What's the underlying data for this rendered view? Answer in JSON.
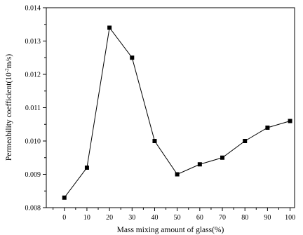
{
  "chart_data": {
    "type": "line",
    "title": "",
    "xlabel": "Mass mixing amount of glass(%)",
    "ylabel": {
      "prefix": "Permeability coefficient(10",
      "exponent": "-2",
      "suffix": "m/s)"
    },
    "x_ticks": [
      "0",
      "10",
      "20",
      "30",
      "40",
      "50",
      "60",
      "70",
      "80",
      "90",
      "100"
    ],
    "y_ticks": [
      "0.008",
      "0.009",
      "0.010",
      "0.011",
      "0.012",
      "0.013",
      "0.014"
    ],
    "xlim": [
      -8,
      102
    ],
    "ylim": [
      0.008,
      0.014
    ],
    "grid": false,
    "marker": "square",
    "colors": {
      "line": "#000000",
      "marker": "#000000",
      "axis": "#000000"
    },
    "series": [
      {
        "x": [
          0,
          10,
          20,
          30,
          40,
          50,
          60,
          70,
          80,
          90,
          100
        ],
        "y": [
          0.0083,
          0.0092,
          0.0134,
          0.0125,
          0.01,
          0.009,
          0.0093,
          0.0095,
          0.01,
          0.0104,
          0.0106
        ]
      }
    ]
  }
}
